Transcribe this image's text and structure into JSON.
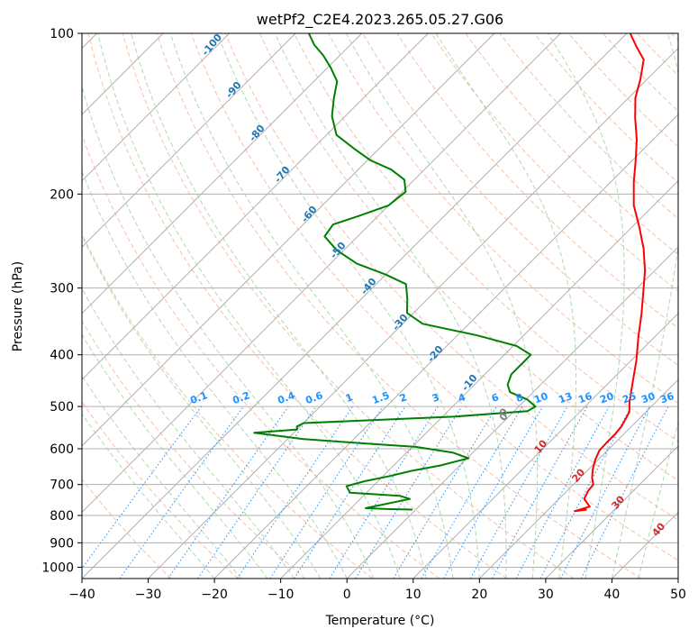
{
  "chart_data": {
    "type": "line",
    "title": "wetPf2_C2E4.2023.265.05.27.G06",
    "xlabel": "Temperature (°C)",
    "ylabel": "Pressure (hPa)",
    "xlim": [
      -40,
      50
    ],
    "ylim": [
      1050,
      100
    ],
    "y_scale": "log",
    "x_ticks": [
      -40,
      -30,
      -20,
      -10,
      0,
      10,
      20,
      30,
      40,
      50
    ],
    "y_ticks": [
      1000,
      900,
      800,
      700,
      600,
      500,
      400,
      300,
      200,
      100
    ],
    "grid": true,
    "legend": "none",
    "skew_degrees": 45,
    "series": [
      {
        "color": "#ff0000",
        "points": [
          [
            25.8,
            780
          ],
          [
            24.2,
            785
          ],
          [
            25.8,
            770
          ],
          [
            23.8,
            745
          ],
          [
            23.2,
            720
          ],
          [
            23.0,
            700
          ],
          [
            21.8,
            680
          ],
          [
            20.6,
            655
          ],
          [
            19.6,
            630
          ],
          [
            18.8,
            605
          ],
          [
            18.7,
            585
          ],
          [
            18.7,
            565
          ],
          [
            18.5,
            545
          ],
          [
            18.0,
            528
          ],
          [
            17.5,
            512
          ],
          [
            16.0,
            490
          ],
          [
            13.5,
            450
          ],
          [
            10.8,
            410
          ],
          [
            7.5,
            370
          ],
          [
            4.5,
            335
          ],
          [
            1.5,
            305
          ],
          [
            -1.5,
            278
          ],
          [
            -5.0,
            253
          ],
          [
            -9.0,
            230
          ],
          [
            -13.0,
            210
          ],
          [
            -16.5,
            190
          ],
          [
            -19.5,
            173
          ],
          [
            -22.5,
            158
          ],
          [
            -26.0,
            144
          ],
          [
            -29.0,
            132
          ],
          [
            -31.0,
            122
          ],
          [
            -33.5,
            112
          ],
          [
            -36.5,
            106
          ],
          [
            -39.5,
            100
          ]
        ]
      },
      {
        "color": "#008000",
        "points": [
          [
            -0.5,
            780
          ],
          [
            -4.5,
            778
          ],
          [
            -7.8,
            775
          ],
          [
            -2.5,
            745
          ],
          [
            -4.5,
            735
          ],
          [
            -12.5,
            725
          ],
          [
            -14.0,
            705
          ],
          [
            -12.0,
            690
          ],
          [
            -9.0,
            675
          ],
          [
            -6.5,
            660
          ],
          [
            -3.0,
            645
          ],
          [
            0.2,
            625
          ],
          [
            -3.0,
            610
          ],
          [
            -9.5,
            595
          ],
          [
            -19.0,
            585
          ],
          [
            -27.8,
            575
          ],
          [
            -36.0,
            560
          ],
          [
            -30.0,
            552
          ],
          [
            -30.5,
            545
          ],
          [
            -30.0,
            537
          ],
          [
            -8.0,
            522
          ],
          [
            2.0,
            510
          ],
          [
            2.5,
            500
          ],
          [
            0.2,
            485
          ],
          [
            -3.5,
            470
          ],
          [
            -5.0,
            455
          ],
          [
            -6.0,
            435
          ],
          [
            -6.0,
            418
          ],
          [
            -6.0,
            400
          ],
          [
            -9.5,
            385
          ],
          [
            -17.0,
            368
          ],
          [
            -27.0,
            350
          ],
          [
            -31.0,
            334
          ],
          [
            -33.0,
            315
          ],
          [
            -35.5,
            295
          ],
          [
            -40.0,
            283
          ],
          [
            -46.0,
            270
          ],
          [
            -51.0,
            255
          ],
          [
            -55.0,
            240
          ],
          [
            -55.5,
            228
          ],
          [
            -53.0,
            220
          ],
          [
            -50.0,
            210
          ],
          [
            -49.5,
            198
          ],
          [
            -51.5,
            188
          ],
          [
            -55.0,
            180
          ],
          [
            -59.5,
            173
          ],
          [
            -63.5,
            165
          ],
          [
            -68.5,
            155
          ],
          [
            -72.0,
            143
          ],
          [
            -74.5,
            132
          ],
          [
            -76.5,
            123
          ],
          [
            -79.5,
            116
          ],
          [
            -82.5,
            110
          ],
          [
            -85.5,
            105
          ],
          [
            -88.0,
            100
          ]
        ]
      }
    ],
    "dry_adiabat_labels": [
      "-100",
      "-90",
      "-80",
      "-70",
      "-60",
      "-50",
      "-40",
      "-30",
      "-20",
      "-10",
      "0"
    ],
    "moist_adiabat_labels": [
      "0",
      "10",
      "20",
      "30",
      "40"
    ],
    "mixing_ratio_labels": [
      "0.1",
      "0.2",
      "0.4",
      "0.6",
      "1",
      "1.5",
      "2",
      "3",
      "4",
      "6",
      "8",
      "10",
      "13",
      "16",
      "20",
      "25",
      "30",
      "36"
    ]
  }
}
